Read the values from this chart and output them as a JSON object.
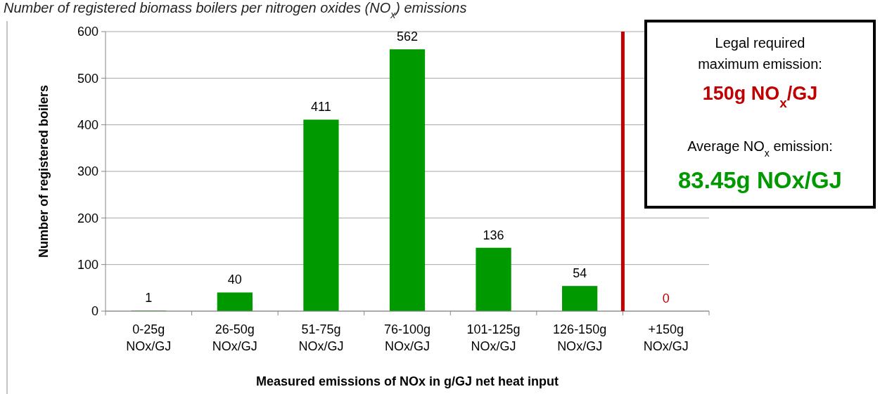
{
  "chart_data": {
    "type": "bar",
    "title": "Number of registered biomass boilers per nitrogen oxides (NO$_{x}$) emissions",
    "xlabel": "Measured emissions of NOx in g/GJ net heat input",
    "ylabel": "Number of registered boilers",
    "categories": [
      "0-25g NOx/GJ",
      "26-50g NOx/GJ",
      "51-75g NOx/GJ",
      "76-100g NOx/GJ",
      "101-125g NOx/GJ",
      "126-150g NOx/GJ",
      "+150g NOx/GJ"
    ],
    "values": [
      1,
      40,
      411,
      562,
      136,
      54,
      0
    ],
    "color": "#009900",
    "ylim": [
      0,
      600
    ],
    "yticks": [
      0,
      100,
      200,
      300,
      400,
      500,
      600
    ],
    "grid": "y",
    "data_labels": true,
    "ref_lines": [
      {
        "axis": "x",
        "value": "+150g NOx/GJ",
        "color": "#c00000"
      }
    ],
    "annotations": [
      "Legal required maximum emission:",
      "150g NO$_{x}$/GJ",
      "Average NO$_{x}$ emission:",
      "83.45g NOx/GJ"
    ]
  }
}
